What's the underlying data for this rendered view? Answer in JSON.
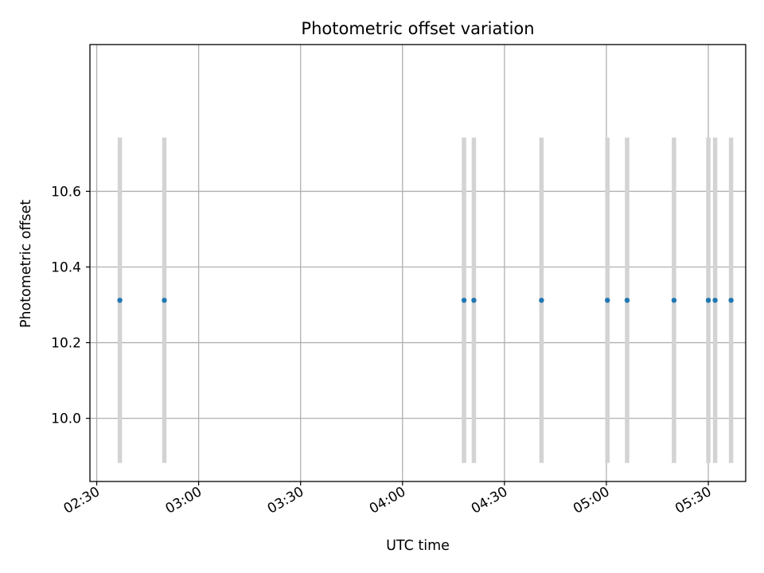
{
  "chart_data": {
    "type": "scatter",
    "title": "Photometric offset variation",
    "xlabel": "UTC time",
    "ylabel": "Photometric offset",
    "xlim": [
      "02:28",
      "05:41"
    ],
    "ylim": [
      9.833,
      10.988
    ],
    "x_ticks": [
      "02:30",
      "03:00",
      "03:30",
      "04:00",
      "04:30",
      "05:00",
      "05:30"
    ],
    "y_ticks": [
      10.0,
      10.2,
      10.4,
      10.6
    ],
    "y_tick_labels": [
      "10.0",
      "10.2",
      "10.4",
      "10.6"
    ],
    "grid": true,
    "series": [
      {
        "color": "#1f77b4",
        "errorbar_color": "#d3d3d3",
        "points": [
          {
            "x": "02:36:48",
            "y": 10.312,
            "err": 0.43
          },
          {
            "x": "02:49:54",
            "y": 10.312,
            "err": 0.43
          },
          {
            "x": "04:18:06",
            "y": 10.312,
            "err": 0.43
          },
          {
            "x": "04:21:00",
            "y": 10.312,
            "err": 0.43
          },
          {
            "x": "04:40:54",
            "y": 10.312,
            "err": 0.43
          },
          {
            "x": "05:00:18",
            "y": 10.312,
            "err": 0.43
          },
          {
            "x": "05:06:06",
            "y": 10.312,
            "err": 0.43
          },
          {
            "x": "05:19:54",
            "y": 10.312,
            "err": 0.43
          },
          {
            "x": "05:30:00",
            "y": 10.312,
            "err": 0.43
          },
          {
            "x": "05:32:00",
            "y": 10.312,
            "err": 0.43
          },
          {
            "x": "05:36:42",
            "y": 10.312,
            "err": 0.43
          }
        ]
      }
    ]
  }
}
